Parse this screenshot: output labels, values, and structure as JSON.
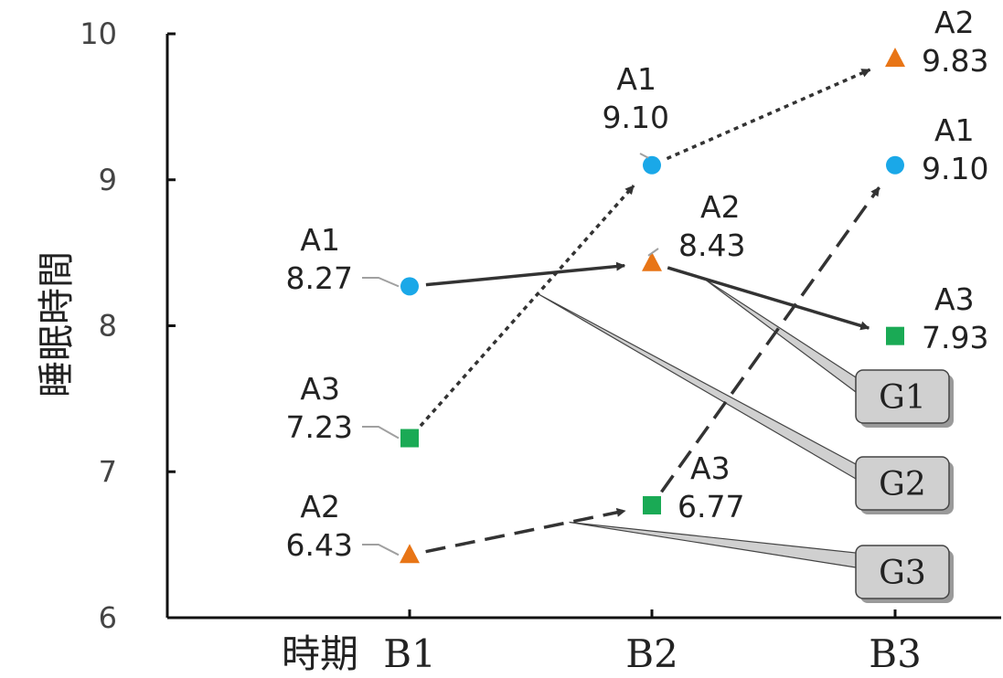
{
  "chart_data": {
    "type": "line",
    "title": "",
    "ylabel": "睡眠時間",
    "xlabel": "時期",
    "ylim": [
      6,
      10
    ],
    "yticks": [
      "6",
      "7",
      "8",
      "9",
      "10"
    ],
    "categories": [
      "B1",
      "B2",
      "B3"
    ],
    "grid": false,
    "series": [
      {
        "name": "A1",
        "marker": "circle",
        "color": "#1aa8e8",
        "values": [
          8.27,
          9.1,
          9.1
        ],
        "labels": [
          "8.27",
          "9.10",
          "9.10"
        ]
      },
      {
        "name": "A2",
        "marker": "triangle",
        "color": "#e87516",
        "values": [
          6.43,
          8.43,
          9.83
        ],
        "labels": [
          "6.43",
          "8.43",
          "9.83"
        ]
      },
      {
        "name": "A3",
        "marker": "square",
        "color": "#1aaa55",
        "values": [
          7.23,
          6.77,
          7.93
        ],
        "labels": [
          "7.23",
          "6.77",
          "7.93"
        ]
      }
    ],
    "groups": [
      {
        "name": "G1",
        "style": "solid",
        "path": [
          [
            "A1",
            0
          ],
          [
            "A2",
            1
          ],
          [
            "A3",
            2
          ]
        ]
      },
      {
        "name": "G2",
        "style": "dotted",
        "path": [
          [
            "A3",
            0
          ],
          [
            "A1",
            1
          ],
          [
            "A2",
            2
          ]
        ]
      },
      {
        "name": "G3",
        "style": "dashed",
        "path": [
          [
            "A2",
            0
          ],
          [
            "A3",
            1
          ],
          [
            "A1",
            2
          ]
        ]
      }
    ]
  }
}
